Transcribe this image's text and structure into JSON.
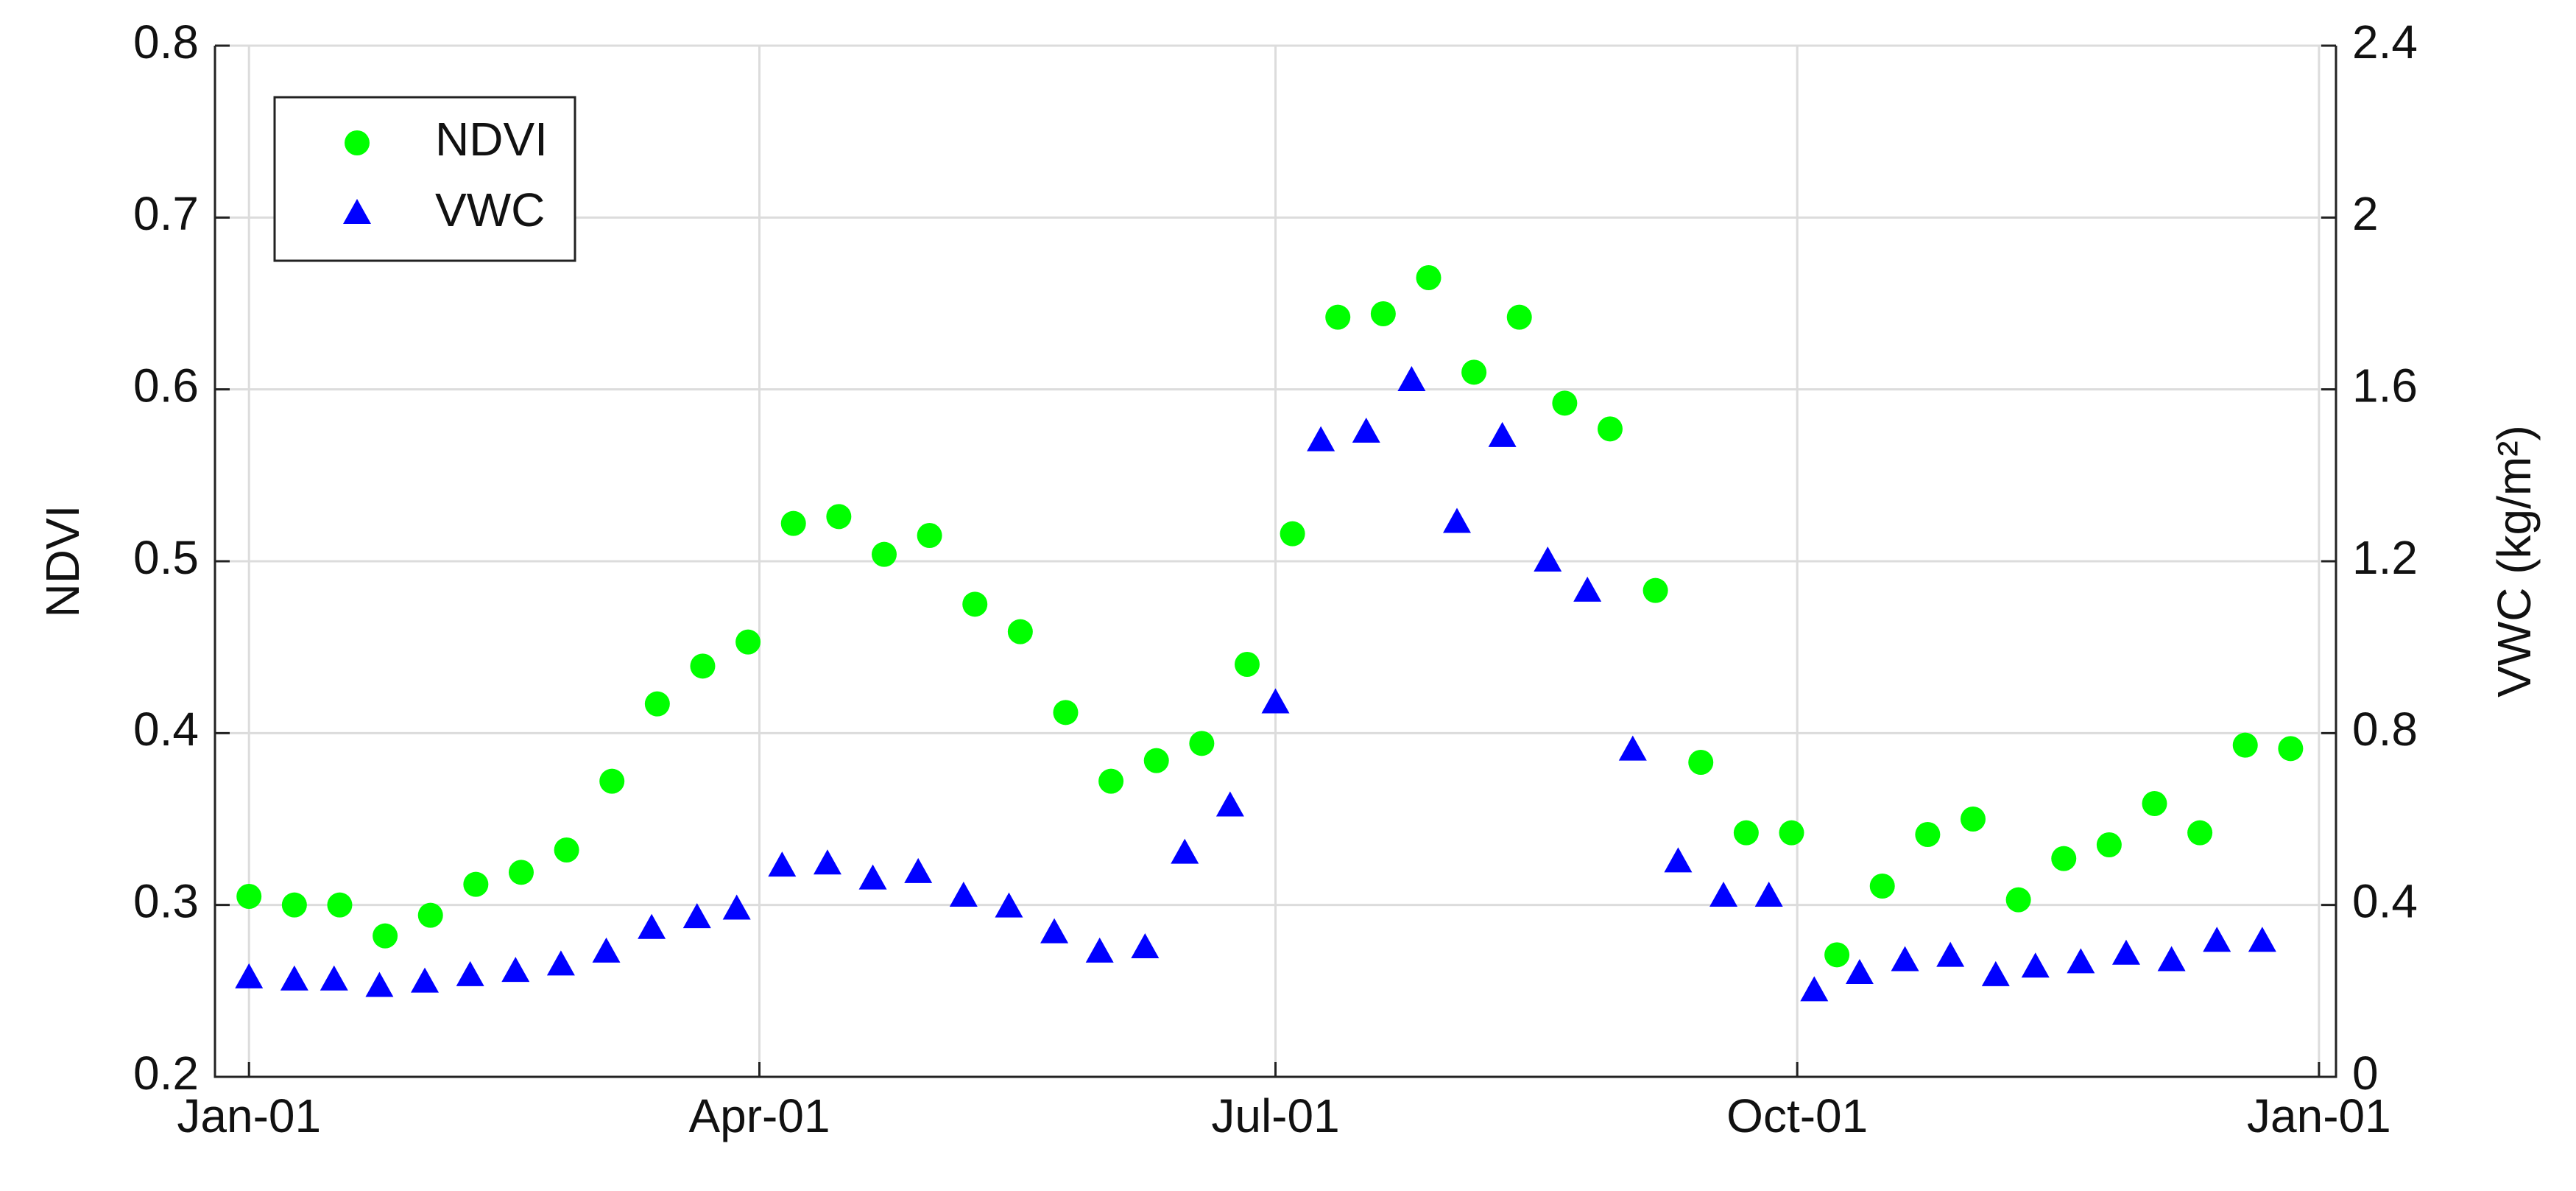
{
  "chart_data": {
    "type": "scatter",
    "xlim": [
      -5,
      369
    ],
    "xticks": [
      {
        "value": 1,
        "label": "Jan-01"
      },
      {
        "value": 91,
        "label": "Apr-01"
      },
      {
        "value": 182,
        "label": "Jul-01"
      },
      {
        "value": 274,
        "label": "Oct-01"
      },
      {
        "value": 366,
        "label": "Jan-01"
      }
    ],
    "ylabel": "NDVI",
    "ylim": [
      0.2,
      0.8
    ],
    "yticks": [
      0.2,
      0.3,
      0.4,
      0.5,
      0.6,
      0.7,
      0.8
    ],
    "y2label": "VWC (kg/m²)",
    "y2lim": [
      0,
      2.4
    ],
    "y2ticks": [
      0,
      0.4,
      0.8,
      1.2,
      1.6,
      2,
      2.4
    ],
    "grid": true,
    "legend": "upper left",
    "series": [
      {
        "name": "NDVI",
        "color": "#00ff00",
        "marker": "circle",
        "x": [
          1,
          9,
          17,
          25,
          33,
          41,
          49,
          57,
          65,
          73,
          81,
          89,
          97,
          105,
          113,
          121,
          129,
          137,
          145,
          153,
          161,
          169,
          177,
          185,
          193,
          201,
          209,
          217,
          225,
          233,
          241,
          249,
          257,
          265,
          273,
          281,
          289,
          297,
          305,
          313,
          321,
          329,
          337,
          345,
          353,
          361
        ],
        "values": [
          0.305,
          0.3,
          0.3,
          0.282,
          0.294,
          0.312,
          0.319,
          0.332,
          0.372,
          0.417,
          0.439,
          0.453,
          0.522,
          0.526,
          0.504,
          0.515,
          0.475,
          0.459,
          0.412,
          0.372,
          0.384,
          0.394,
          0.44,
          0.516,
          0.642,
          0.644,
          0.665,
          0.61,
          0.642,
          0.592,
          0.577,
          0.483,
          0.383,
          0.342,
          0.342,
          0.271,
          0.311,
          0.341,
          0.35,
          0.303,
          0.327,
          0.335,
          0.359,
          0.342,
          0.393,
          0.391
        ]
      },
      {
        "name": "VWC",
        "color": "#0000ff",
        "marker": "triangle",
        "axis": "y2",
        "x": [
          1,
          9,
          16,
          24,
          32,
          40,
          48,
          56,
          64,
          72,
          80,
          87,
          95,
          103,
          111,
          119,
          127,
          135,
          143,
          151,
          159,
          166,
          174,
          182,
          190,
          198,
          206,
          214,
          222,
          230,
          237,
          245,
          253,
          261,
          269,
          277,
          285,
          293,
          301,
          309,
          316,
          324,
          332,
          340,
          348,
          356
        ],
        "values": [
          0.23,
          0.225,
          0.225,
          0.21,
          0.22,
          0.235,
          0.245,
          0.26,
          0.29,
          0.345,
          0.37,
          0.39,
          0.49,
          0.495,
          0.46,
          0.475,
          0.42,
          0.395,
          0.335,
          0.29,
          0.3,
          0.52,
          0.63,
          0.87,
          1.48,
          1.5,
          1.62,
          1.29,
          1.49,
          1.2,
          1.13,
          0.76,
          0.5,
          0.42,
          0.42,
          0.2,
          0.24,
          0.27,
          0.28,
          0.235,
          0.255,
          0.265,
          0.285,
          0.27,
          0.315,
          0.315
        ]
      }
    ]
  }
}
